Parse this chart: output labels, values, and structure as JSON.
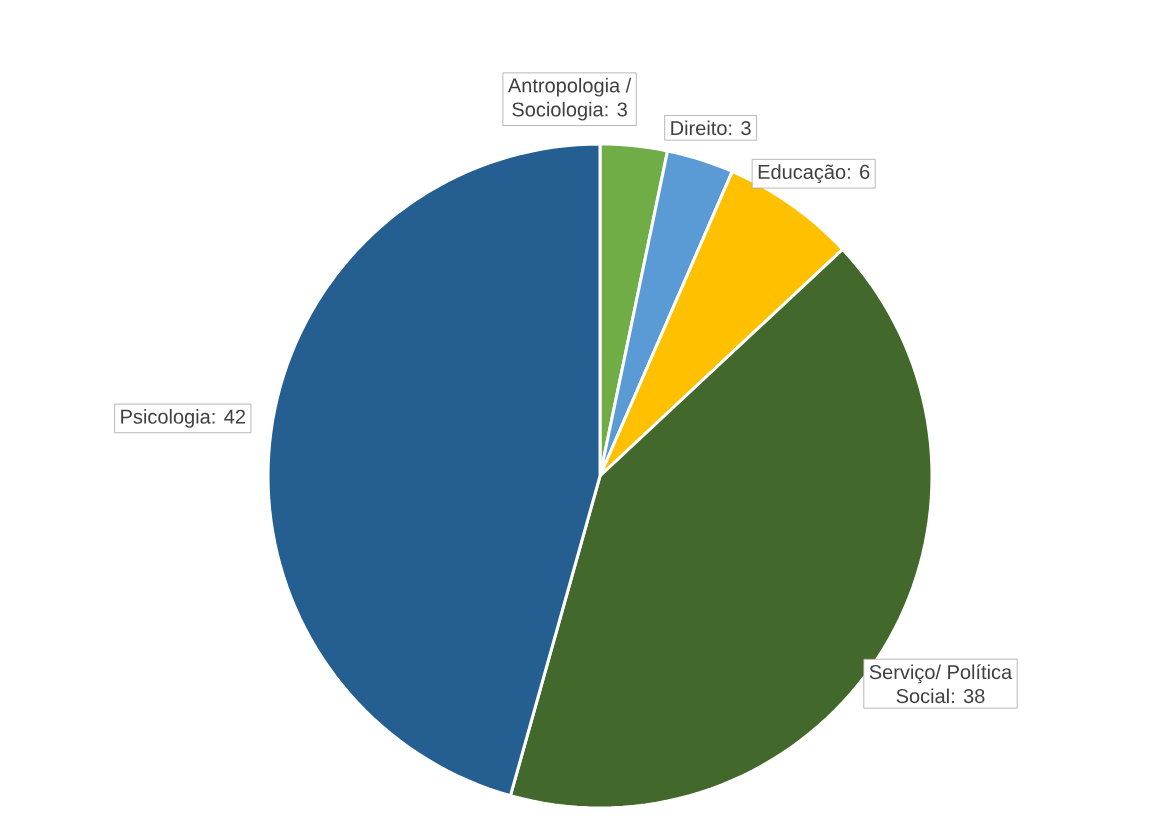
{
  "chart_data": {
    "type": "pie",
    "categories": [
      "Antropologia / Sociologia",
      "Direito",
      "Educação",
      "Serviço/ Política Social",
      "Psicologia"
    ],
    "values": [
      3,
      3,
      6,
      38,
      42
    ],
    "colors": [
      "#70ad47",
      "#5b9bd5",
      "#ffc000",
      "#43682b",
      "#255e91"
    ],
    "data_labels": true,
    "value_labels": [
      ": 3",
      ": 3",
      ": 6",
      ": 38",
      ": 42"
    ]
  }
}
